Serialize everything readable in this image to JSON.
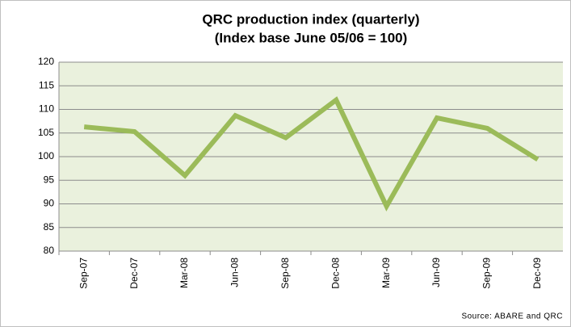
{
  "chart_data": {
    "type": "line",
    "title": "QRC production index (quarterly)",
    "subtitle": "(Index base June 05/06 = 100)",
    "source": "Source: ABARE and QRC",
    "categories": [
      "Sep-07",
      "Dec-07",
      "Mar-08",
      "Jun-08",
      "Sep-08",
      "Dec-08",
      "Mar-09",
      "Jun-09",
      "Sep-09",
      "Dec-09"
    ],
    "series": [
      {
        "name": "QRC production index",
        "color": "#9bbb59",
        "values": [
          106.3,
          105.3,
          96,
          108.7,
          104,
          112,
          89.5,
          108.2,
          106,
          99.4
        ]
      }
    ],
    "ylim": [
      80,
      120
    ],
    "yticks": [
      80,
      85,
      90,
      95,
      100,
      105,
      110,
      115,
      120
    ],
    "grid": true
  }
}
